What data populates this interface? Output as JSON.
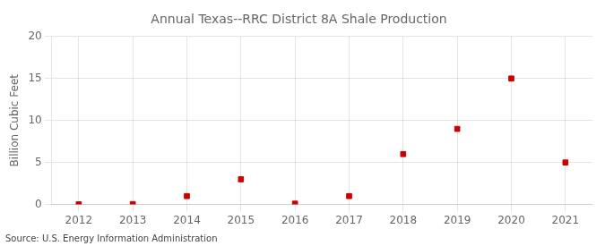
{
  "chart_data": {
    "type": "scatter",
    "title": "Annual Texas--RRC District 8A Shale Production",
    "ylabel": "Billion Cubic Feet",
    "annotation": "Source: U.S. Energy Information Administration",
    "x": [
      2012,
      2013,
      2014,
      2015,
      2016,
      2017,
      2018,
      2019,
      2020,
      2021
    ],
    "values": [
      0.02,
      0.05,
      1.0,
      3.0,
      0.1,
      1.0,
      6.0,
      9.0,
      15.0,
      5.0
    ],
    "color": "#cc0000",
    "marker": "square",
    "xlim": [
      2011.5,
      2021.5
    ],
    "xticks": [
      2012,
      2013,
      2014,
      2015,
      2016,
      2017,
      2018,
      2019,
      2020,
      2021
    ],
    "ylim": [
      0,
      20
    ],
    "yticks": [
      0,
      5,
      10,
      15,
      20
    ],
    "grid": true
  }
}
